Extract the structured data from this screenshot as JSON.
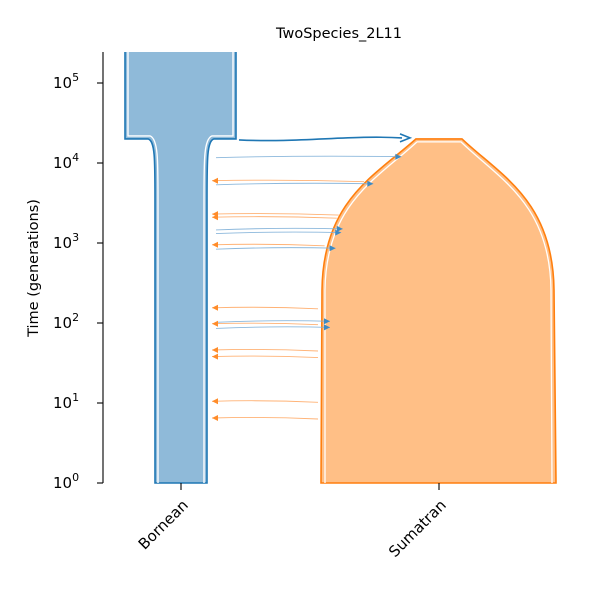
{
  "title": "TwoSpecies_2L11",
  "y_axis": {
    "label": "Time (generations)",
    "scale": "log",
    "range": [
      1,
      250000
    ],
    "ticks": [
      {
        "value": 1,
        "base": "10",
        "exp": "0"
      },
      {
        "value": 10,
        "base": "10",
        "exp": "1"
      },
      {
        "value": 100,
        "base": "10",
        "exp": "2"
      },
      {
        "value": 1000,
        "base": "10",
        "exp": "3"
      },
      {
        "value": 10000,
        "base": "10",
        "exp": "4"
      },
      {
        "value": 100000,
        "base": "10",
        "exp": "5"
      }
    ]
  },
  "populations": [
    {
      "name": "Bornean",
      "fill": "#8fbad9",
      "edge": "#1f77b4",
      "start_time": 20000
    },
    {
      "name": "Sumatran",
      "fill": "#ffbf86",
      "edge": "#ff7f0e",
      "start_time": 20000
    }
  ],
  "ancestor": {
    "name": "Bornean",
    "split_time": 20000,
    "fill": "#8fbad9",
    "edge": "#1f77b4"
  },
  "split_arrow": {
    "from": "Bornean",
    "to": "Sumatran",
    "time": 20000
  },
  "migrations": [
    {
      "from": "Bornean",
      "to": "Sumatran",
      "time": 12000
    },
    {
      "from": "Sumatran",
      "to": "Bornean",
      "time": 6000
    },
    {
      "from": "Bornean",
      "to": "Sumatran",
      "time": 5500
    },
    {
      "from": "Sumatran",
      "to": "Bornean",
      "time": 2300
    },
    {
      "from": "Sumatran",
      "to": "Bornean",
      "time": 2100
    },
    {
      "from": "Bornean",
      "to": "Sumatran",
      "time": 1500
    },
    {
      "from": "Bornean",
      "to": "Sumatran",
      "time": 1350
    },
    {
      "from": "Sumatran",
      "to": "Bornean",
      "time": 950
    },
    {
      "from": "Bornean",
      "to": "Sumatran",
      "time": 860
    },
    {
      "from": "Sumatran",
      "to": "Bornean",
      "time": 155
    },
    {
      "from": "Bornean",
      "to": "Sumatran",
      "time": 105
    },
    {
      "from": "Sumatran",
      "to": "Bornean",
      "time": 98
    },
    {
      "from": "Bornean",
      "to": "Sumatran",
      "time": 88
    },
    {
      "from": "Sumatran",
      "to": "Bornean",
      "time": 46
    },
    {
      "from": "Sumatran",
      "to": "Bornean",
      "time": 38
    },
    {
      "from": "Sumatran",
      "to": "Bornean",
      "time": 10.5
    },
    {
      "from": "Sumatran",
      "to": "Bornean",
      "time": 6.5
    }
  ]
}
